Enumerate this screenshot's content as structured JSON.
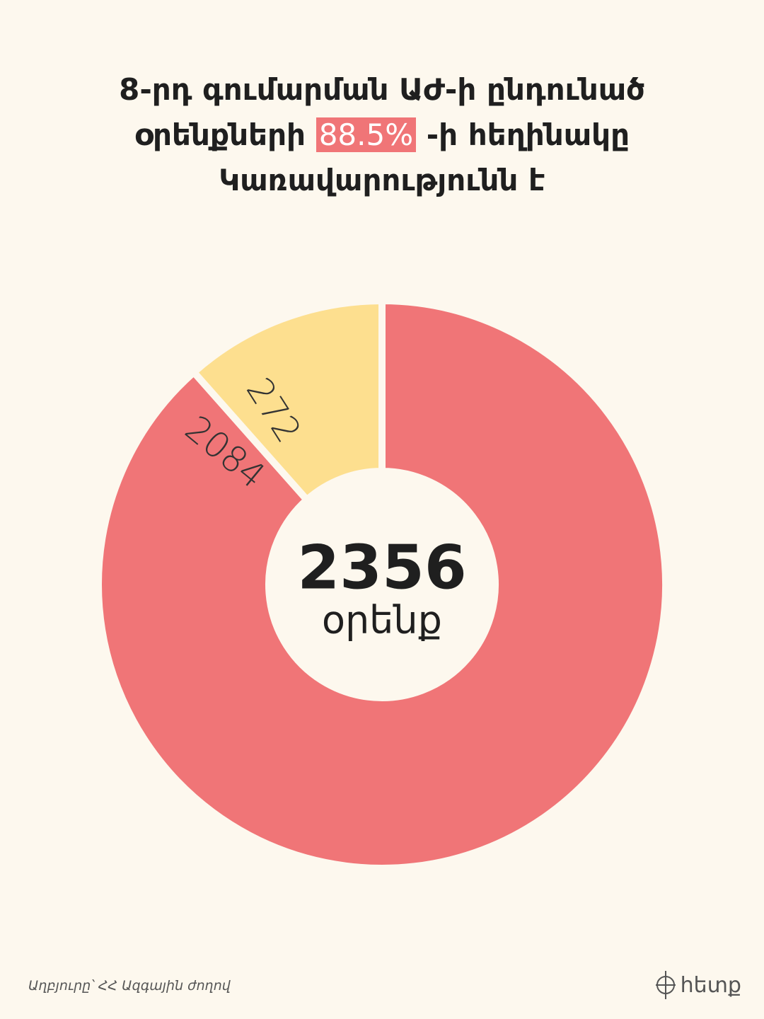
{
  "chart_data": {
    "type": "pie",
    "title": {
      "line1": "8-րդ գումարման ԱԺ-ի ընդունած",
      "line2_before": "օրենքների",
      "highlight": "88.5%",
      "line2_after": "-ի հեղինակը",
      "line3": "Կառավարությունն է"
    },
    "values": [
      2084,
      272
    ],
    "colors": [
      "#f07577",
      "#fddf8f"
    ],
    "center_value": 2356,
    "center_text": "օրենք",
    "source": "Աղբյուրը՝ ՀՀ Ազգային ժողով",
    "logo": "հետք"
  }
}
